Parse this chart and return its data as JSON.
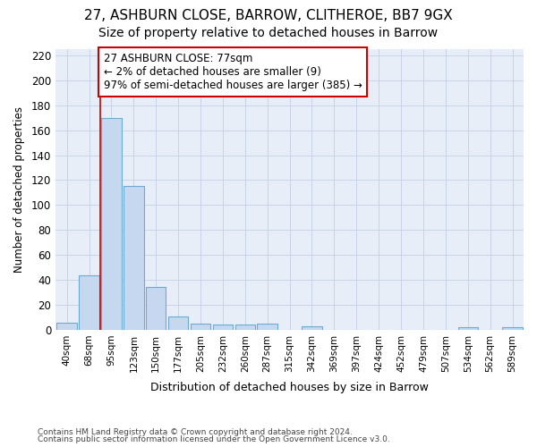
{
  "title1": "27, ASHBURN CLOSE, BARROW, CLITHEROE, BB7 9GX",
  "title2": "Size of property relative to detached houses in Barrow",
  "xlabel": "Distribution of detached houses by size in Barrow",
  "ylabel": "Number of detached properties",
  "footnote1": "Contains HM Land Registry data © Crown copyright and database right 2024.",
  "footnote2": "Contains public sector information licensed under the Open Government Licence v3.0.",
  "bin_labels": [
    "40sqm",
    "68sqm",
    "95sqm",
    "123sqm",
    "150sqm",
    "177sqm",
    "205sqm",
    "232sqm",
    "260sqm",
    "287sqm",
    "315sqm",
    "342sqm",
    "369sqm",
    "397sqm",
    "424sqm",
    "452sqm",
    "479sqm",
    "507sqm",
    "534sqm",
    "562sqm",
    "589sqm"
  ],
  "bar_values": [
    6,
    44,
    170,
    115,
    34,
    11,
    5,
    4,
    4,
    5,
    0,
    3,
    0,
    0,
    0,
    0,
    0,
    0,
    2,
    0,
    2
  ],
  "bar_color": "#c5d8f0",
  "bar_edge_color": "#6aaad4",
  "grid_color": "#c8d4e8",
  "background_color": "#e8eef8",
  "ylim": [
    0,
    225
  ],
  "yticks": [
    0,
    20,
    40,
    60,
    80,
    100,
    120,
    140,
    160,
    180,
    200,
    220
  ],
  "property_line_x": 1.5,
  "annotation_line1": "27 ASHBURN CLOSE: 77sqm",
  "annotation_line2": "← 2% of detached houses are smaller (9)",
  "annotation_line3": "97% of semi-detached houses are larger (385) →",
  "annotation_box_color": "#ffffff",
  "annotation_border_color": "#cc0000",
  "vline_color": "#cc0000",
  "title1_fontsize": 11,
  "title2_fontsize": 10,
  "annotation_fontsize": 8.5
}
